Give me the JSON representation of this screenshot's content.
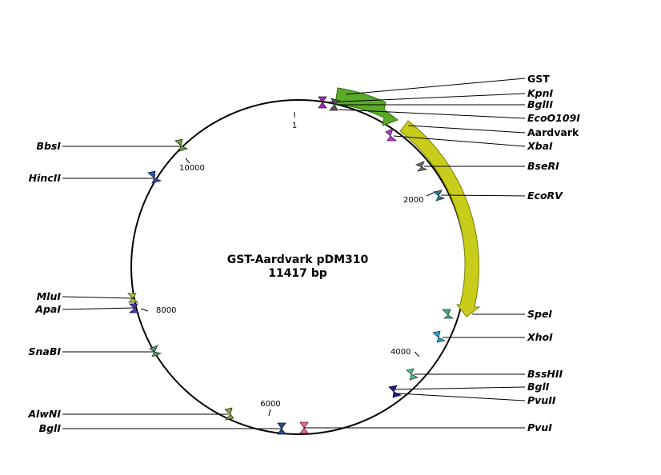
{
  "plasmid": {
    "name": "GST-Aardvark pDM310",
    "size_label": "11417 bp",
    "length_bp": 11417
  },
  "ticks": [
    {
      "label": "1"
    },
    {
      "label": "2000"
    },
    {
      "label": "4000"
    },
    {
      "label": "6000"
    },
    {
      "label": "8000"
    },
    {
      "label": "10000"
    }
  ],
  "features": [
    {
      "name": "GST",
      "color": "#5aaa28",
      "outline": "#2e6e10"
    },
    {
      "name": "Aardvark",
      "color": "#c8cc1a",
      "outline": "#7a7c08"
    }
  ],
  "sites": [
    {
      "name": "GST",
      "kind": "feature",
      "color": "#5aaa28"
    },
    {
      "name": "KpnI",
      "kind": "enzyme",
      "color": "#9a30b0"
    },
    {
      "name": "BglII",
      "kind": "enzyme",
      "color": "#555555"
    },
    {
      "name": "EcoO109I",
      "kind": "enzyme",
      "color": "#888888"
    },
    {
      "name": "Aardvark",
      "kind": "feature",
      "color": "#c8cc1a"
    },
    {
      "name": "XbaI",
      "kind": "enzyme",
      "color": "#b03cc8"
    },
    {
      "name": "BseRI",
      "kind": "enzyme",
      "color": "#707070"
    },
    {
      "name": "EcoRV",
      "kind": "enzyme",
      "color": "#2a7c8c"
    },
    {
      "name": "SpeI",
      "kind": "enzyme",
      "color": "#4aa878"
    },
    {
      "name": "XhoI",
      "kind": "enzyme",
      "color": "#30a0c0"
    },
    {
      "name": "BssHII",
      "kind": "enzyme",
      "color": "#58b880"
    },
    {
      "name": "BglI",
      "kind": "enzyme",
      "color": "#202080"
    },
    {
      "name": "PvuII",
      "kind": "enzyme",
      "color": "#2a2aa0"
    },
    {
      "name": "PvuI",
      "kind": "enzyme",
      "color": "#e070a0"
    },
    {
      "name": "BglI",
      "kind": "enzyme",
      "color": "#2a4a90"
    },
    {
      "name": "AlwNI",
      "kind": "enzyme",
      "color": "#8a9a50"
    },
    {
      "name": "SnaBI",
      "kind": "enzyme",
      "color": "#5a9a70"
    },
    {
      "name": "ApaI",
      "kind": "enzyme",
      "color": "#4a3ab0"
    },
    {
      "name": "MluI",
      "kind": "enzyme",
      "color": "#b8c040"
    },
    {
      "name": "HincII",
      "kind": "enzyme",
      "color": "#3050b0"
    },
    {
      "name": "BbsI",
      "kind": "enzyme",
      "color": "#6a9a40"
    }
  ]
}
